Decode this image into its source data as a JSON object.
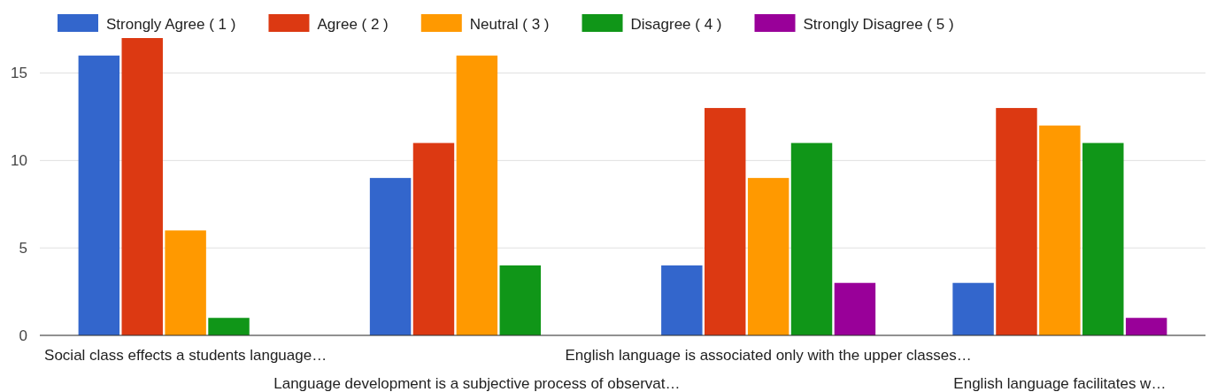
{
  "chart_data": {
    "type": "bar",
    "categories": [
      "Social class effects a students language…",
      "Language development is a subjective process of observat…",
      "English language is associated only with the upper classes…",
      "English language facilitates w…"
    ],
    "series": [
      {
        "name": "Strongly Agree ( 1 )",
        "color": "#3366cc",
        "values": [
          16,
          9,
          4,
          3
        ]
      },
      {
        "name": "Agree ( 2 )",
        "color": "#dc3912",
        "values": [
          17,
          11,
          13,
          13
        ]
      },
      {
        "name": "Neutral ( 3 )",
        "color": "#ff9900",
        "values": [
          6,
          16,
          9,
          12
        ]
      },
      {
        "name": "Disagree ( 4 )",
        "color": "#109618",
        "values": [
          1,
          4,
          11,
          11
        ]
      },
      {
        "name": "Strongly Disagree ( 5 )",
        "color": "#990099",
        "values": [
          0,
          0,
          3,
          1
        ]
      }
    ],
    "ylim": [
      0,
      17
    ],
    "yticks": [
      0,
      5,
      10,
      15
    ],
    "grid": "y",
    "legend": "top"
  }
}
